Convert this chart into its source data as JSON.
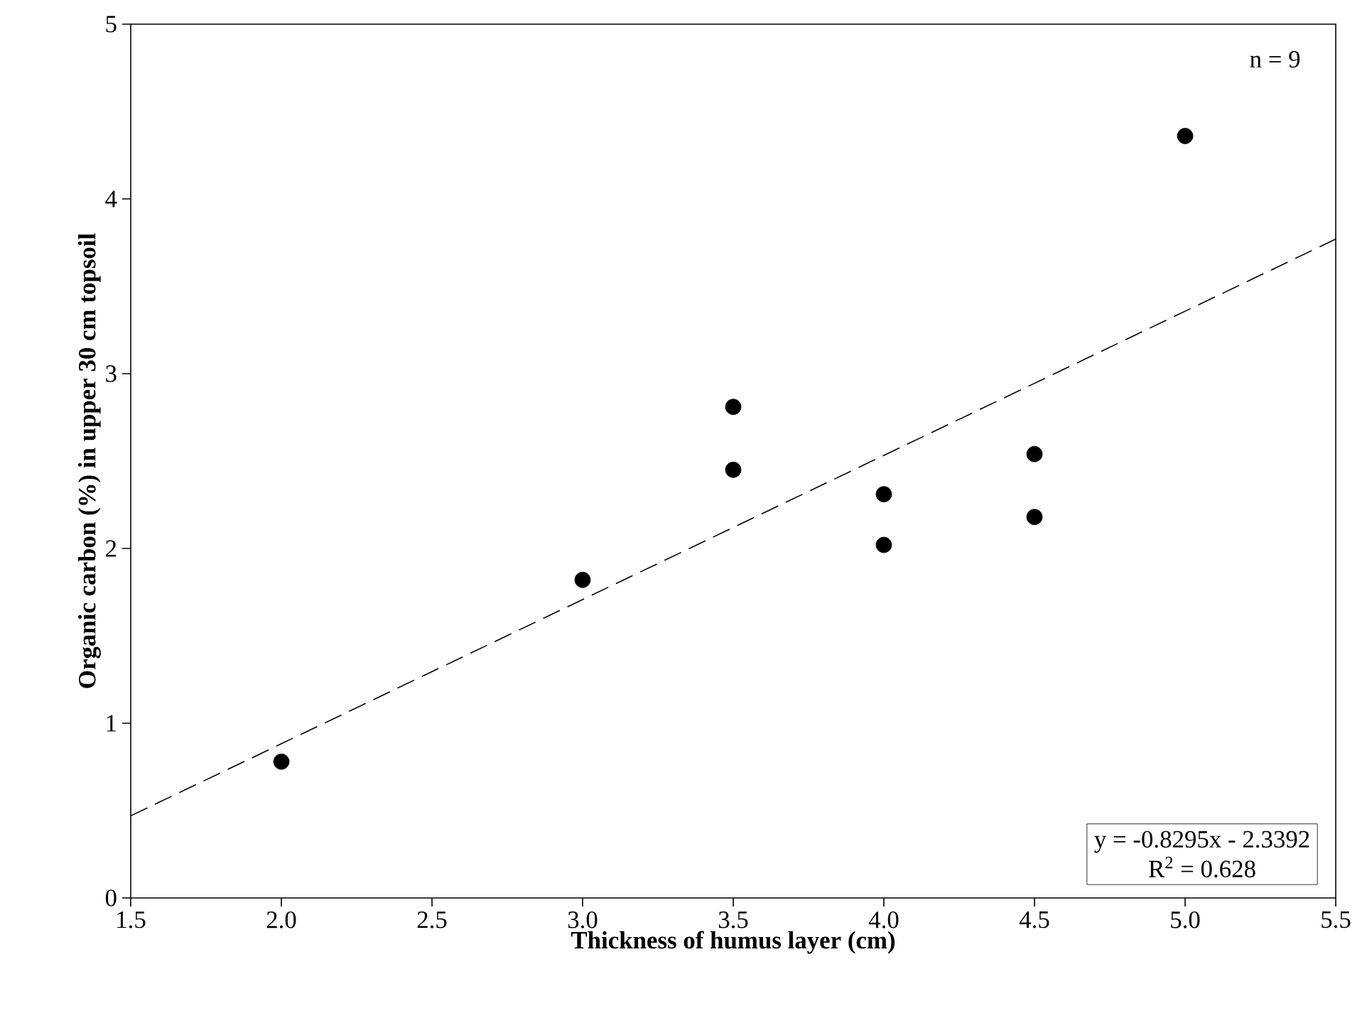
{
  "chart_data": {
    "type": "scatter",
    "xlabel": "Thickness of humus layer (cm)",
    "ylabel": "Organic carbon (%) in upper 30 cm topsoil",
    "xlim": [
      1.5,
      5.5
    ],
    "ylim": [
      0,
      5
    ],
    "xticks": [
      1.5,
      {
        "value": 2,
        "label": "2.0"
      },
      2.5,
      {
        "value": 3,
        "label": "3.0"
      },
      3.5,
      {
        "value": 4,
        "label": "4.0"
      },
      4.5,
      {
        "value": 5,
        "label": "5.0"
      },
      5.5
    ],
    "yticks": [
      0,
      1,
      2,
      3,
      4,
      5
    ],
    "series": [
      {
        "color": "#000000",
        "marker": "circle",
        "x": [
          2.0,
          3.0,
          3.5,
          3.5,
          4.0,
          4.0,
          4.5,
          4.5,
          5.0
        ],
        "values": [
          0.78,
          1.82,
          2.81,
          2.45,
          2.31,
          2.02,
          2.54,
          2.18,
          4.36
        ]
      },
      {
        "type": "line",
        "color": "#000000",
        "marker": "none",
        "line_style": "dashed",
        "x": [
          1.5,
          5.5
        ],
        "values": [
          0.47,
          3.77
        ]
      }
    ],
    "annotations": [
      "n = 9",
      "y = -0.8295x - 2.3392",
      "R$^{2}$ = 0.628"
    ]
  }
}
